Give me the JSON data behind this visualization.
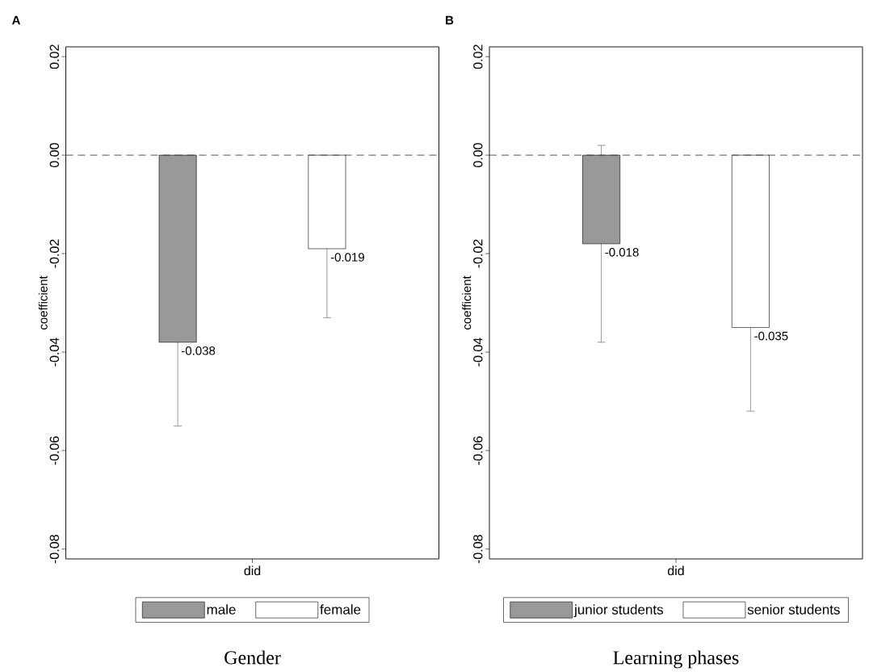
{
  "chart_data": [
    {
      "type": "bar",
      "title": "Gender",
      "ylabel": "coefficient",
      "annotations": [
        "A"
      ],
      "categories": [
        "did"
      ],
      "series": [
        {
          "name": "male",
          "color": "#999999",
          "values": [
            -0.038
          ],
          "errors": [
            0.017
          ],
          "value_labels": [
            "-0.038"
          ]
        },
        {
          "name": "female",
          "color": "#ffffff",
          "values": [
            -0.019
          ],
          "errors": [
            0.014
          ],
          "value_labels": [
            "-0.019"
          ]
        }
      ],
      "ylim": [
        -0.082,
        0.022
      ],
      "yticks": [
        {
          "value": -0.08,
          "label": "-0.08"
        },
        {
          "value": -0.06,
          "label": "-0.06"
        },
        {
          "value": -0.04,
          "label": "-0.04"
        },
        {
          "value": -0.02,
          "label": "-0.02"
        },
        {
          "value": 0,
          "label": "0.00"
        },
        {
          "value": 0.02,
          "label": "0.02"
        }
      ],
      "ref_lines": [
        {
          "axis": "y",
          "value": 0,
          "line_style": "dashed"
        }
      ],
      "legend": "bottom",
      "grid": false
    },
    {
      "type": "bar",
      "title": "Learning phases",
      "ylabel": "coefficient",
      "annotations": [
        "B"
      ],
      "categories": [
        "did"
      ],
      "series": [
        {
          "name": "junior students",
          "color": "#999999",
          "values": [
            -0.018
          ],
          "errors": [
            0.02
          ],
          "value_labels": [
            "-0.018"
          ]
        },
        {
          "name": "senior students",
          "color": "#ffffff",
          "values": [
            -0.035
          ],
          "errors": [
            0.017
          ],
          "value_labels": [
            "-0.035"
          ]
        }
      ],
      "ylim": [
        -0.082,
        0.022
      ],
      "yticks": [
        {
          "value": -0.08,
          "label": "-0.08"
        },
        {
          "value": -0.06,
          "label": "-0.06"
        },
        {
          "value": -0.04,
          "label": "-0.04"
        },
        {
          "value": -0.02,
          "label": "-0.02"
        },
        {
          "value": 0,
          "label": "0.00"
        },
        {
          "value": 0.02,
          "label": "0.02"
        }
      ],
      "ref_lines": [
        {
          "axis": "y",
          "value": 0,
          "line_style": "dashed"
        }
      ],
      "legend": "bottom",
      "grid": false
    }
  ]
}
